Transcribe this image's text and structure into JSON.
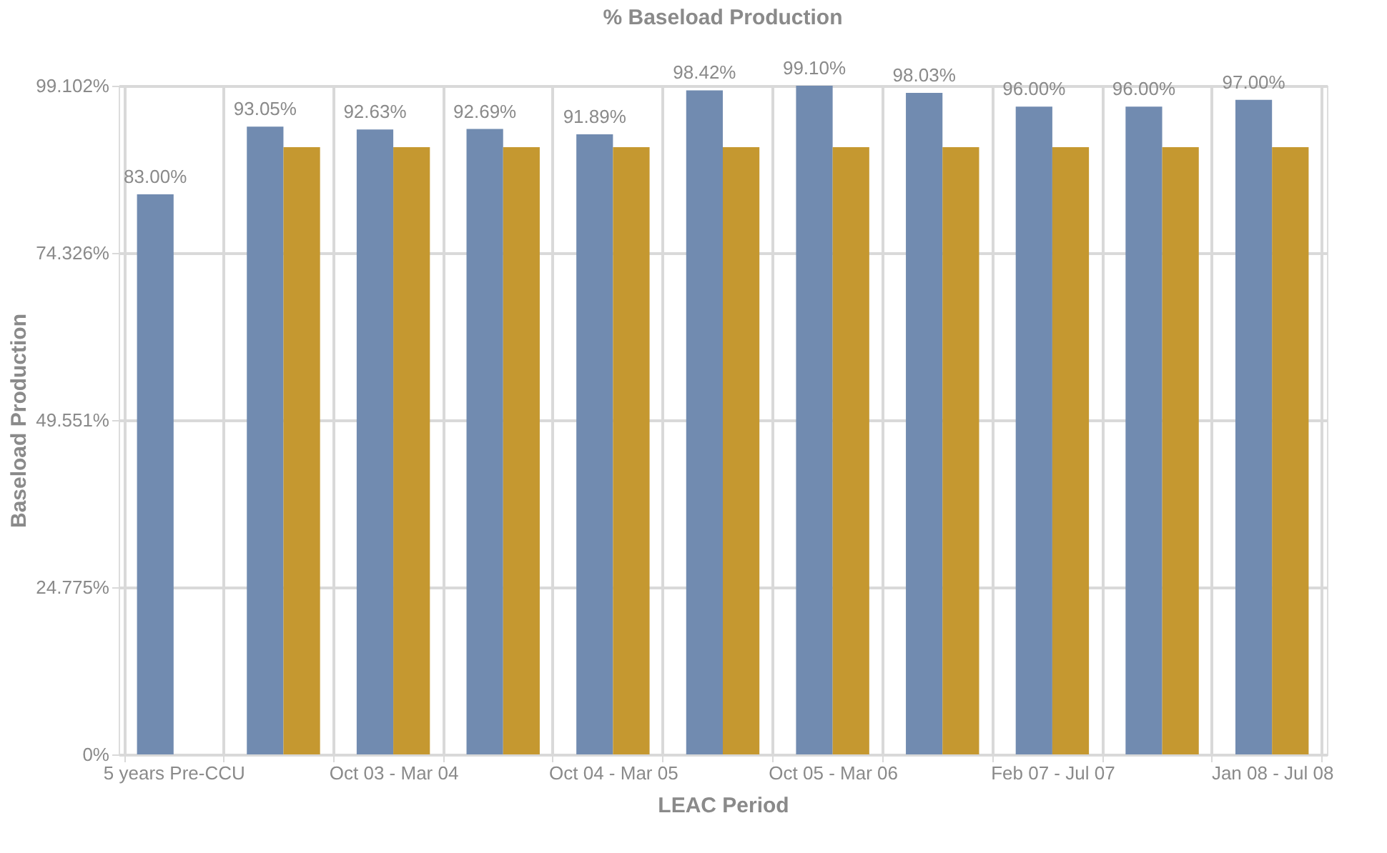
{
  "chart_data": {
    "type": "bar",
    "title": "% Baseload Production",
    "xlabel": "LEAC Period",
    "ylabel": "Baseload Production",
    "categories": [
      "5 years Pre-CCU",
      null,
      "Oct 03 - Mar 04",
      null,
      "Oct 04 - Mar 05",
      null,
      "Oct 05 - Mar 06",
      null,
      "Feb 07 - Jul 07",
      null,
      "Jan 08 - Jul 08"
    ],
    "series": [
      {
        "color": "#718bb0",
        "values": [
          83.0,
          93.05,
          92.63,
          92.69,
          91.89,
          98.42,
          99.1,
          98.03,
          96.0,
          96.0,
          97.0
        ],
        "value_labels": [
          "83.00%",
          "93.05%",
          "92.63%",
          "92.69%",
          "91.89%",
          "98.42%",
          "99.10%",
          "98.03%",
          "96.00%",
          "96.00%",
          "97.00%"
        ]
      },
      {
        "color": "#c59830",
        "values": [
          null,
          90,
          90,
          90,
          90,
          90,
          90,
          90,
          90,
          90,
          90
        ]
      }
    ],
    "ylim": [
      0,
      99.102
    ],
    "yticks": [
      {
        "value": 0,
        "label": "0%"
      },
      {
        "value": 24.775,
        "label": "24.775%"
      },
      {
        "value": 49.551,
        "label": "49.551%"
      },
      {
        "value": 74.326,
        "label": "74.326%"
      },
      {
        "value": 99.102,
        "label": "99.102%"
      }
    ],
    "grid": true,
    "legend": false
  }
}
